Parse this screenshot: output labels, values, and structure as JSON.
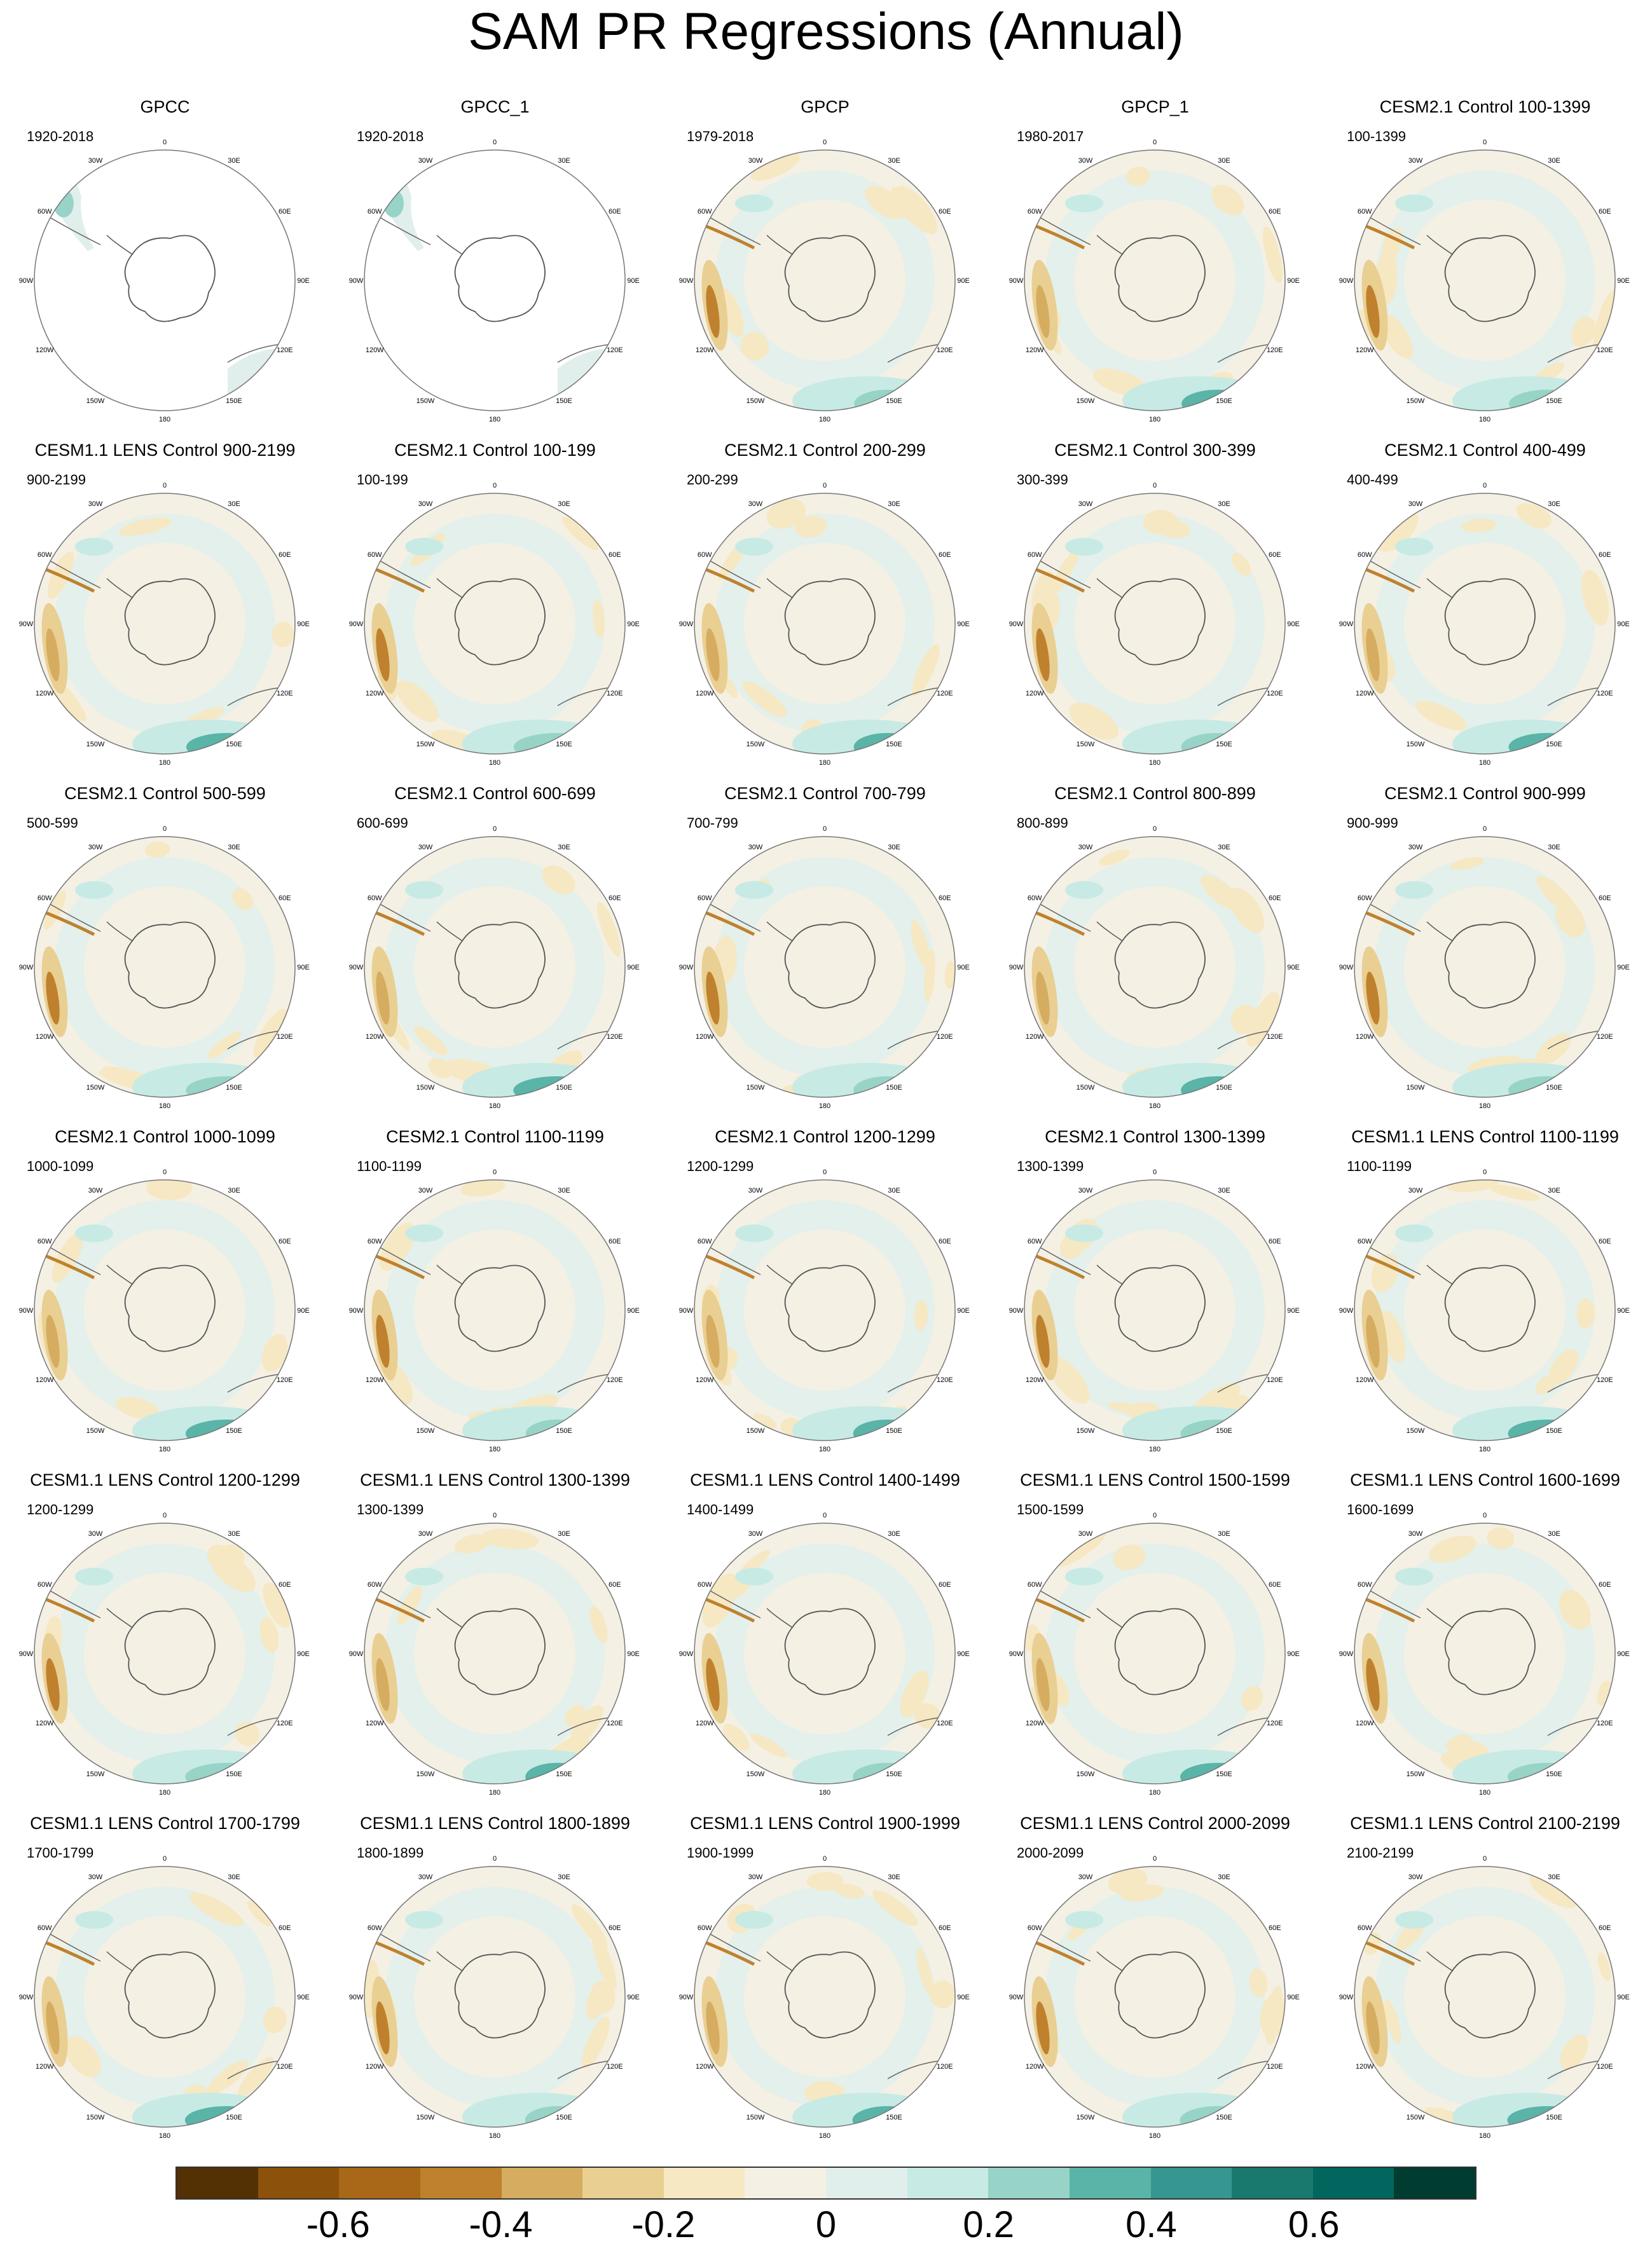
{
  "title": "SAM PR Regressions (Annual)",
  "panels": [
    {
      "title": "GPCC",
      "period": "1920-2018",
      "style": "obs_land"
    },
    {
      "title": "GPCC_1",
      "period": "1920-2018",
      "style": "obs_land"
    },
    {
      "title": "GPCP",
      "period": "1979-2018",
      "style": "full"
    },
    {
      "title": "GPCP_1",
      "period": "1980-2017",
      "style": "full"
    },
    {
      "title": "CESM2.1 Control 100-1399",
      "period": "100-1399",
      "style": "full"
    },
    {
      "title": "CESM1.1 LENS Control 900-2199",
      "period": "900-2199",
      "style": "full"
    },
    {
      "title": "CESM2.1 Control 100-199",
      "period": "100-199",
      "style": "full"
    },
    {
      "title": "CESM2.1 Control 200-299",
      "period": "200-299",
      "style": "full"
    },
    {
      "title": "CESM2.1 Control 300-399",
      "period": "300-399",
      "style": "full"
    },
    {
      "title": "CESM2.1 Control 400-499",
      "period": "400-499",
      "style": "full"
    },
    {
      "title": "CESM2.1 Control 500-599",
      "period": "500-599",
      "style": "full"
    },
    {
      "title": "CESM2.1 Control 600-699",
      "period": "600-699",
      "style": "full"
    },
    {
      "title": "CESM2.1 Control 700-799",
      "period": "700-799",
      "style": "full"
    },
    {
      "title": "CESM2.1 Control 800-899",
      "period": "800-899",
      "style": "full"
    },
    {
      "title": "CESM2.1 Control 900-999",
      "period": "900-999",
      "style": "full"
    },
    {
      "title": "CESM2.1 Control 1000-1099",
      "period": "1000-1099",
      "style": "full"
    },
    {
      "title": "CESM2.1 Control 1100-1199",
      "period": "1100-1199",
      "style": "full"
    },
    {
      "title": "CESM2.1 Control 1200-1299",
      "period": "1200-1299",
      "style": "full"
    },
    {
      "title": "CESM2.1 Control 1300-1399",
      "period": "1300-1399",
      "style": "full"
    },
    {
      "title": "CESM1.1 LENS Control 1100-1199",
      "period": "1100-1199",
      "style": "full"
    },
    {
      "title": "CESM1.1 LENS Control 1200-1299",
      "period": "1200-1299",
      "style": "full"
    },
    {
      "title": "CESM1.1 LENS Control 1300-1399",
      "period": "1300-1399",
      "style": "full"
    },
    {
      "title": "CESM1.1 LENS Control 1400-1499",
      "period": "1400-1499",
      "style": "full"
    },
    {
      "title": "CESM1.1 LENS Control 1500-1599",
      "period": "1500-1599",
      "style": "full"
    },
    {
      "title": "CESM1.1 LENS Control 1600-1699",
      "period": "1600-1699",
      "style": "full"
    },
    {
      "title": "CESM1.1 LENS Control 1700-1799",
      "period": "1700-1799",
      "style": "full"
    },
    {
      "title": "CESM1.1 LENS Control 1800-1899",
      "period": "1800-1899",
      "style": "full"
    },
    {
      "title": "CESM1.1 LENS Control 1900-1999",
      "period": "1900-1999",
      "style": "full"
    },
    {
      "title": "CESM1.1 LENS Control 2000-2099",
      "period": "2000-2099",
      "style": "full"
    },
    {
      "title": "CESM1.1 LENS Control 2100-2199",
      "period": "2100-2199",
      "style": "full"
    }
  ],
  "map_labels": [
    "0",
    "30E",
    "60E",
    "90E",
    "120E",
    "150E",
    "180",
    "150W",
    "120W",
    "90W",
    "60W",
    "30W"
  ],
  "colorbar": {
    "colors": [
      "#543005",
      "#8c510a",
      "#a86818",
      "#bf812d",
      "#d6ac60",
      "#e9cf92",
      "#f6e8c3",
      "#f5f0e4",
      "#e1efec",
      "#c7eae5",
      "#97d4c7",
      "#5ab4a8",
      "#35978f",
      "#19796f",
      "#01665e",
      "#003c30"
    ],
    "tick_labels": [
      "-0.6",
      "-0.4",
      "-0.2",
      "0",
      "0.2",
      "0.4",
      "0.6"
    ]
  }
}
